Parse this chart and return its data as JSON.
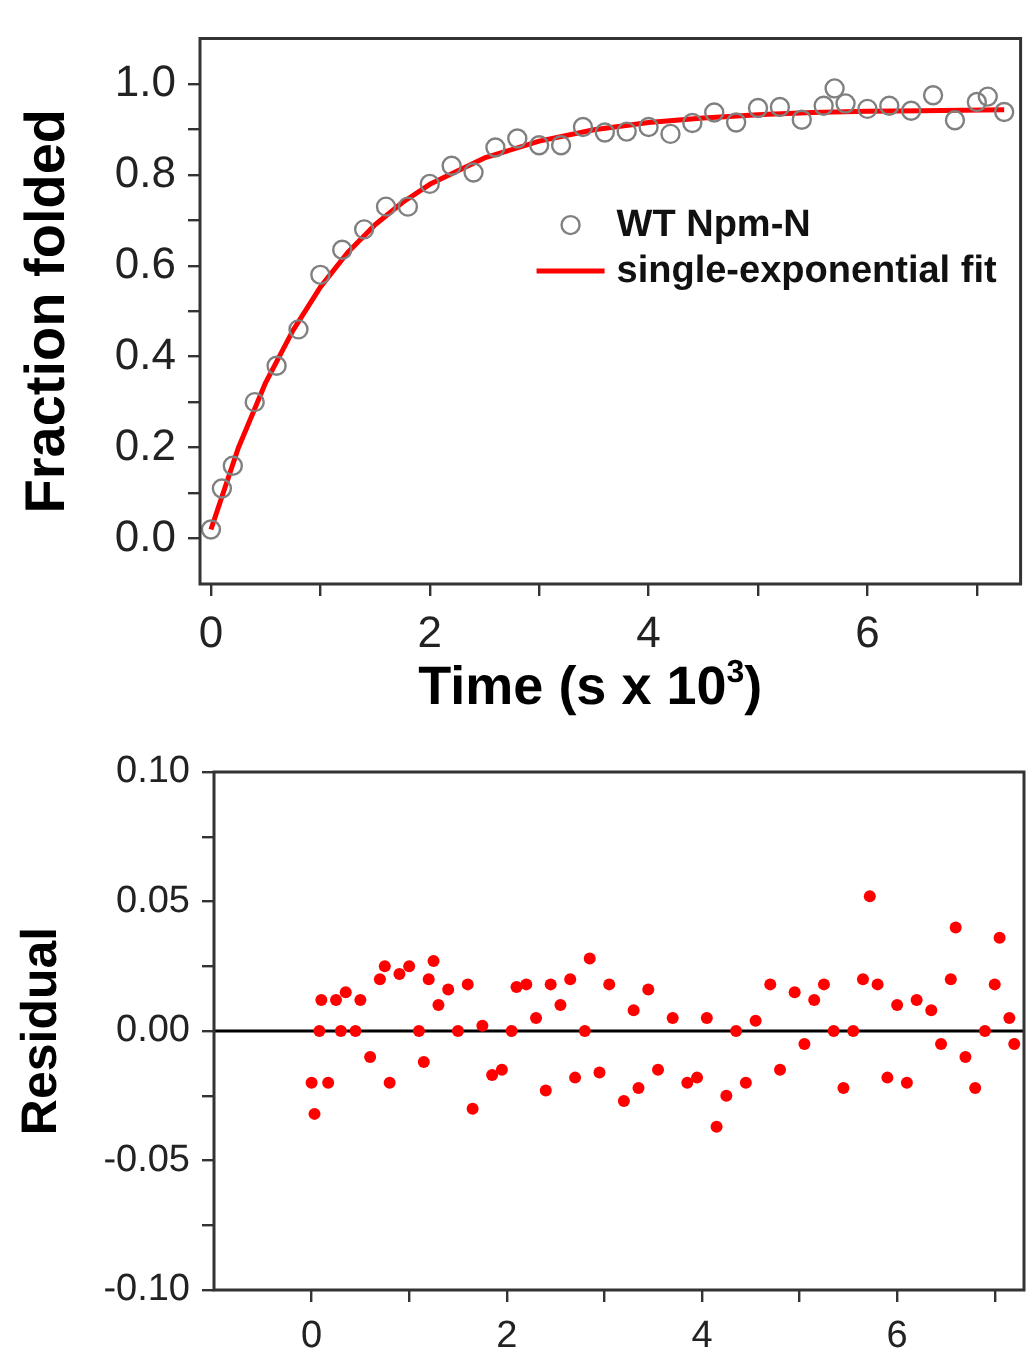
{
  "chart_data": [
    {
      "type": "scatter",
      "xlabel": "Time (s x 10$^{3}$)",
      "ylabel": "Fraction folded",
      "xlim": [
        -0.1,
        7.4
      ],
      "ylim": [
        -0.1,
        1.1
      ],
      "xticks": [
        0,
        {
          "value": 1,
          "label": null
        },
        2,
        {
          "value": 3,
          "label": null
        },
        4,
        {
          "value": 5,
          "label": null
        },
        6,
        {
          "value": 7,
          "label": null
        }
      ],
      "yticks": [
        {
          "value": 0,
          "label": "0.0"
        },
        {
          "value": 0.1,
          "label": null
        },
        0.2,
        {
          "value": 0.3,
          "label": null
        },
        0.4,
        {
          "value": 0.5,
          "label": null
        },
        0.6,
        {
          "value": 0.7,
          "label": null
        },
        0.8,
        {
          "value": 0.9,
          "label": null
        },
        {
          "value": 1,
          "label": "1.0"
        }
      ],
      "grid": false,
      "legend": "top right",
      "marker": "circle",
      "series": [
        {
          "type": "scatter",
          "name": "WT Npm-N",
          "color": "#808080",
          "x": [
            0,
            0.1,
            0.2,
            0.4,
            0.6,
            0.8,
            1.0,
            1.2,
            1.4,
            1.6,
            1.8,
            2.0,
            2.2,
            2.4,
            2.6,
            2.8,
            3.0,
            3.2,
            3.4,
            3.6,
            3.8,
            4.0,
            4.2,
            4.4,
            4.6,
            4.8,
            5.0,
            5.2,
            5.4,
            5.6,
            5.7,
            5.8,
            6.0,
            6.2,
            6.4,
            6.6,
            6.8,
            7.0,
            7.1,
            7.25
          ],
          "values": [
            0.02,
            0.11,
            0.16,
            0.3,
            0.38,
            0.46,
            0.58,
            0.635,
            0.68,
            0.73,
            0.73,
            0.78,
            0.82,
            0.805,
            0.86,
            0.88,
            0.865,
            0.865,
            0.905,
            0.893,
            0.895,
            0.905,
            0.89,
            0.914,
            0.937,
            0.915,
            0.947,
            0.949,
            0.921,
            0.952,
            0.99,
            0.957,
            0.945,
            0.952,
            0.941,
            0.975,
            0.92,
            0.96,
            0.972,
            0.938
          ]
        },
        {
          "type": "line",
          "name": "single-exponential fit",
          "color": "#ff0000",
          "marker": "none",
          "x": [
            0,
            0.25,
            0.5,
            0.75,
            1,
            1.25,
            1.5,
            1.75,
            2,
            2.5,
            3,
            3.5,
            4,
            4.5,
            5,
            5.5,
            6,
            6.5,
            7.25
          ],
          "values": [
            0.02,
            0.199,
            0.343,
            0.458,
            0.553,
            0.629,
            0.69,
            0.739,
            0.779,
            0.837,
            0.874,
            0.899,
            0.915,
            0.925,
            0.932,
            0.937,
            0.94,
            0.941,
            0.943
          ]
        }
      ]
    },
    {
      "type": "scatter",
      "ylabel": "Residual",
      "xlim": [
        -1,
        7.3
      ],
      "ylim": [
        -0.1,
        0.1
      ],
      "xticks": [
        0,
        {
          "value": 1,
          "label": null
        },
        2,
        {
          "value": 3,
          "label": null
        },
        4,
        {
          "value": 5,
          "label": null
        },
        6,
        {
          "value": 7,
          "label": null
        }
      ],
      "yticks": [
        {
          "value": -0.1,
          "label": "-0.10"
        },
        {
          "value": -0.075,
          "label": null
        },
        -0.05,
        {
          "value": -0.025,
          "label": null
        },
        {
          "value": 0,
          "label": "0.00"
        },
        {
          "value": 0.025,
          "label": null
        },
        0.05,
        {
          "value": 0.075,
          "label": null
        },
        {
          "value": 0.1,
          "label": "0.10"
        }
      ],
      "grid": false,
      "legend": false,
      "marker": "circle",
      "ref_lines": [
        {
          "axis": "y",
          "value": 0,
          "color": "#000000"
        }
      ],
      "series": [
        {
          "color": "#ff0000",
          "x": [
            0,
            0.03,
            0.08,
            0.1,
            0.17,
            0.25,
            0.3,
            0.35,
            0.45,
            0.5,
            0.6,
            0.7,
            0.75,
            0.8,
            0.9,
            1.0,
            1.1,
            1.15,
            1.2,
            1.25,
            1.3,
            1.4,
            1.5,
            1.6,
            1.65,
            1.75,
            1.85,
            1.95,
            2.05,
            2.1,
            2.2,
            2.3,
            2.4,
            2.45,
            2.55,
            2.65,
            2.7,
            2.8,
            2.85,
            2.95,
            3.05,
            3.2,
            3.3,
            3.35,
            3.45,
            3.55,
            3.7,
            3.85,
            3.95,
            4.05,
            4.15,
            4.25,
            4.35,
            4.45,
            4.55,
            4.7,
            4.8,
            4.95,
            5.05,
            5.15,
            5.25,
            5.35,
            5.45,
            5.55,
            5.65,
            5.72,
            5.8,
            5.9,
            6.0,
            6.1,
            6.2,
            6.35,
            6.45,
            6.55,
            6.6,
            6.7,
            6.8,
            6.9,
            7.0,
            7.05,
            7.15,
            7.2
          ],
          "values": [
            -0.02,
            -0.032,
            0.0,
            0.012,
            -0.02,
            0.012,
            0.0,
            0.015,
            0.0,
            0.012,
            -0.01,
            0.02,
            0.025,
            -0.02,
            0.022,
            0.025,
            0.0,
            -0.012,
            0.02,
            0.027,
            0.01,
            0.016,
            0.0,
            0.018,
            -0.03,
            0.002,
            -0.017,
            -0.015,
            0.0,
            0.017,
            0.018,
            0.005,
            -0.023,
            0.018,
            0.01,
            0.02,
            -0.018,
            0.0,
            0.028,
            -0.016,
            0.018,
            -0.027,
            0.008,
            -0.022,
            0.016,
            -0.015,
            0.005,
            -0.02,
            -0.018,
            0.005,
            -0.037,
            -0.025,
            0.0,
            -0.02,
            0.004,
            0.018,
            -0.015,
            0.015,
            -0.005,
            0.012,
            0.018,
            0.0,
            -0.022,
            0.0,
            0.02,
            0.052,
            0.018,
            -0.018,
            0.01,
            -0.02,
            0.012,
            0.008,
            -0.005,
            0.02,
            0.04,
            -0.01,
            -0.022,
            0.0,
            0.018,
            0.036,
            0.005,
            -0.005
          ]
        }
      ]
    }
  ]
}
